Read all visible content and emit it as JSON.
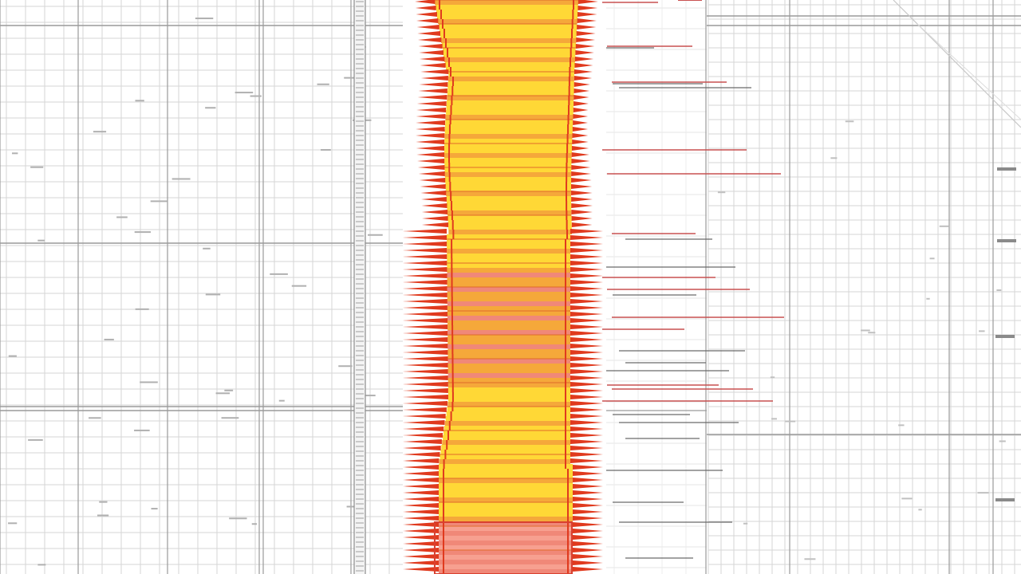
{
  "colors": {
    "background": "#ffffff",
    "grid_minor": "#d6d6d6",
    "grid_major": "#9a9a9a",
    "band_yellow": "#ffd836",
    "band_orange": "#f5a83a",
    "band_salmon": "#f08878",
    "edge_red": "#e03a1e",
    "annotation_red": "#c85050",
    "annotation_gray": "#6a6a6a"
  },
  "icons": {
    "tick_strip": "vertical-ruler-ticks",
    "band_edges": "sawtooth-arrow-edges"
  }
}
